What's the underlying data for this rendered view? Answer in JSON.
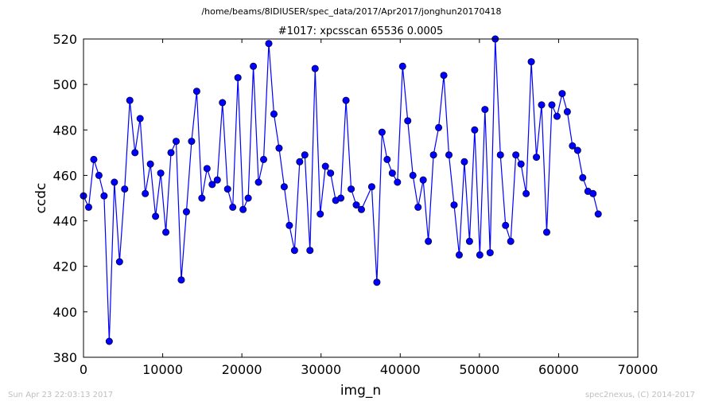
{
  "header": {
    "path": "/home/beams/8IDIUSER/spec_data/2017/Apr2017/jonghun20170418"
  },
  "footer": {
    "timestamp": "Sun Apr 23 22:03:13 2017",
    "credit": "spec2nexus, (C) 2014-2017"
  },
  "colors": {
    "series": "#0000ff",
    "axis": "#000000",
    "footer": "#bfbfbf"
  },
  "chart_data": {
    "type": "line",
    "title": "#1017: xpcsscan 65536 0.0005",
    "xlabel": "img_n",
    "ylabel": "ccdc",
    "xlim": [
      0,
      70000
    ],
    "ylim": [
      380,
      520
    ],
    "xticks": [
      "0",
      "10000",
      "20000",
      "30000",
      "40000",
      "50000",
      "60000",
      "70000"
    ],
    "yticks": [
      "380",
      "400",
      "420",
      "440",
      "460",
      "480",
      "500",
      "520"
    ],
    "grid": false,
    "legend": "none",
    "marker": "circle",
    "x": [
      0,
      650,
      1300,
      1950,
      2600,
      3250,
      3900,
      4550,
      5200,
      5850,
      6500,
      7150,
      7800,
      8450,
      9100,
      9750,
      10400,
      11050,
      11700,
      12350,
      13000,
      13650,
      14300,
      14950,
      15600,
      16250,
      16900,
      17550,
      18200,
      18850,
      19500,
      20150,
      20800,
      21450,
      22100,
      22750,
      23400,
      24050,
      24700,
      25350,
      26000,
      26650,
      27300,
      27950,
      28600,
      29250,
      29900,
      30550,
      31200,
      31850,
      32500,
      33150,
      33800,
      34450,
      35100,
      36400,
      37050,
      37700,
      38350,
      39000,
      39650,
      40300,
      40950,
      41600,
      42250,
      42900,
      43550,
      44200,
      44850,
      45500,
      46150,
      46800,
      47450,
      48100,
      48750,
      49400,
      50050,
      50700,
      51350,
      52000,
      52650,
      53300,
      53950,
      54600,
      55250,
      55900,
      56550,
      57200,
      57850,
      58500,
      59150,
      59800,
      60450,
      61100,
      61750,
      62400,
      63050,
      63700,
      64350,
      65000
    ],
    "y": [
      451,
      446,
      467,
      460,
      451,
      387,
      457,
      422,
      454,
      493,
      470,
      485,
      452,
      465,
      442,
      461,
      435,
      470,
      475,
      414,
      444,
      475,
      497,
      450,
      463,
      456,
      458,
      492,
      454,
      446,
      503,
      445,
      450,
      508,
      457,
      467,
      518,
      487,
      472,
      455,
      438,
      427,
      466,
      469,
      427,
      507,
      443,
      464,
      461,
      449,
      450,
      493,
      454,
      447,
      445,
      455,
      413,
      479,
      467,
      461,
      457,
      508,
      484,
      460,
      446,
      458,
      431,
      469,
      481,
      504,
      469,
      447,
      425,
      466,
      431,
      480,
      425,
      489,
      426,
      520,
      469,
      438,
      431,
      469,
      465,
      452,
      510,
      468,
      491,
      435,
      491,
      486,
      496,
      488,
      473,
      471,
      459,
      453,
      452,
      443
    ]
  }
}
